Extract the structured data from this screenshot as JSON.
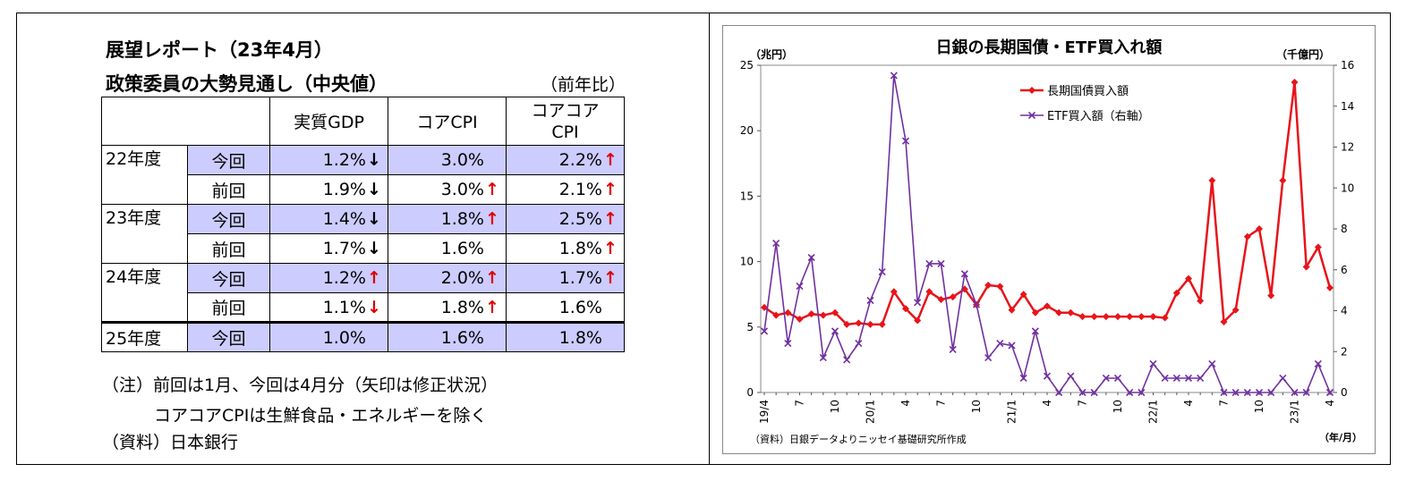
{
  "table": {
    "title_line1": "展望レポート（23年4月）",
    "title_line2": "政策委員の大勢見通し（中央値）",
    "yoy_label": "（前年比）",
    "headers": [
      "実質GDP",
      "コアCPI",
      "コアコア CPI"
    ],
    "rows": [
      {
        "fy": "22年度",
        "label": "今回",
        "gdp": "1.2%",
        "gdp_arrow": "down",
        "cpi": "3.0%",
        "cpi_arrow": "",
        "ccpi": "2.2%",
        "ccpi_arrow": "up"
      },
      {
        "fy": "",
        "label": "前回",
        "gdp": "1.9%",
        "gdp_arrow": "down",
        "cpi": "3.0%",
        "cpi_arrow": "up",
        "ccpi": "2.1%",
        "ccpi_arrow": "up"
      },
      {
        "fy": "23年度",
        "label": "今回",
        "gdp": "1.4%",
        "gdp_arrow": "down",
        "cpi": "1.8%",
        "cpi_arrow": "up",
        "ccpi": "2.5%",
        "ccpi_arrow": "up"
      },
      {
        "fy": "",
        "label": "前回",
        "gdp": "1.7%",
        "gdp_arrow": "down",
        "cpi": "1.6%",
        "cpi_arrow": "",
        "ccpi": "1.8%",
        "ccpi_arrow": "up"
      },
      {
        "fy": "24年度",
        "label": "今回",
        "gdp": "1.2%",
        "gdp_arrow": "up",
        "cpi": "2.0%",
        "cpi_arrow": "up",
        "ccpi": "1.7%",
        "ccpi_arrow": "up"
      },
      {
        "fy": "",
        "label": "前回",
        "gdp": "1.1%",
        "gdp_arrow": "down_red",
        "cpi": "1.8%",
        "cpi_arrow": "up",
        "ccpi": "1.6%",
        "ccpi_arrow": ""
      },
      {
        "fy": "25年度",
        "label": "今回",
        "gdp": "1.0%",
        "gdp_arrow": "",
        "cpi": "1.6%",
        "cpi_arrow": "",
        "ccpi": "1.8%",
        "ccpi_arrow": ""
      }
    ],
    "notes": {
      "note1": "（注）前回は1月、今回は4月分（矢印は修正状況）",
      "note2": "コアコアCPIは生鮮食品・エネルギーを除く",
      "source": "（資料）日本銀行"
    },
    "arrow_colors": {
      "up": "#e00000",
      "down": "#000000",
      "down_red": "#e00000"
    }
  },
  "chart_data": {
    "type": "line",
    "title": "日銀の長期国債・ETF買入れ額",
    "left_unit": "（兆円）",
    "right_unit": "（千億円）",
    "xlabel": "（年/月）",
    "source": "（資料）日銀データよりニッセイ基礎研究所作成",
    "x_tick_labels": [
      {
        "i": 0,
        "label": "19/4"
      },
      {
        "i": 3,
        "label": "7"
      },
      {
        "i": 6,
        "label": "10"
      },
      {
        "i": 9,
        "label": "20/1"
      },
      {
        "i": 12,
        "label": "4"
      },
      {
        "i": 15,
        "label": "7"
      },
      {
        "i": 18,
        "label": "10"
      },
      {
        "i": 21,
        "label": "21/1"
      },
      {
        "i": 24,
        "label": "4"
      },
      {
        "i": 27,
        "label": "7"
      },
      {
        "i": 30,
        "label": "10"
      },
      {
        "i": 33,
        "label": "22/1"
      },
      {
        "i": 36,
        "label": "4"
      },
      {
        "i": 39,
        "label": "7"
      },
      {
        "i": 42,
        "label": "10"
      },
      {
        "i": 45,
        "label": "23/1"
      },
      {
        "i": 48,
        "label": "4"
      }
    ],
    "ylim_left": [
      0,
      25
    ],
    "yticks_left": [
      0,
      5,
      10,
      15,
      20,
      25
    ],
    "ylim_right": [
      0,
      16
    ],
    "yticks_right": [
      0,
      2,
      4,
      6,
      8,
      10,
      12,
      14,
      16
    ],
    "grid": false,
    "legend_position": "top-left-inside",
    "series": [
      {
        "name": "長期国債買入額",
        "axis": "left",
        "color": "#e8141a",
        "marker": "diamond",
        "values": [
          6.5,
          5.9,
          6.1,
          5.6,
          6.0,
          5.9,
          6.1,
          5.2,
          5.3,
          5.2,
          5.2,
          7.7,
          6.4,
          5.5,
          7.7,
          7.1,
          7.3,
          7.9,
          6.7,
          8.2,
          8.1,
          6.3,
          7.5,
          6.1,
          6.6,
          6.1,
          6.1,
          5.8,
          5.8,
          5.8,
          5.8,
          5.8,
          5.8,
          5.8,
          5.7,
          7.6,
          8.7,
          7.0,
          16.2,
          5.4,
          6.3,
          11.9,
          12.5,
          7.4,
          16.2,
          23.7,
          9.6,
          11.1,
          8.0
        ]
      },
      {
        "name": "ETF買入額（右軸）",
        "axis": "right",
        "color": "#7030a0",
        "marker": "x",
        "values": [
          3.0,
          7.3,
          2.4,
          5.2,
          6.6,
          1.7,
          3.0,
          1.6,
          2.4,
          4.5,
          5.9,
          15.5,
          12.3,
          4.4,
          6.3,
          6.3,
          2.1,
          5.8,
          4.3,
          1.7,
          2.4,
          2.3,
          0.7,
          3.0,
          0.8,
          0.0,
          0.8,
          0.0,
          0.0,
          0.7,
          0.7,
          0.0,
          0.0,
          1.4,
          0.7,
          0.7,
          0.7,
          0.7,
          1.4,
          0.0,
          0.0,
          0.0,
          0.0,
          0.0,
          0.7,
          0.0,
          0.0,
          1.4,
          0.0
        ]
      }
    ]
  }
}
